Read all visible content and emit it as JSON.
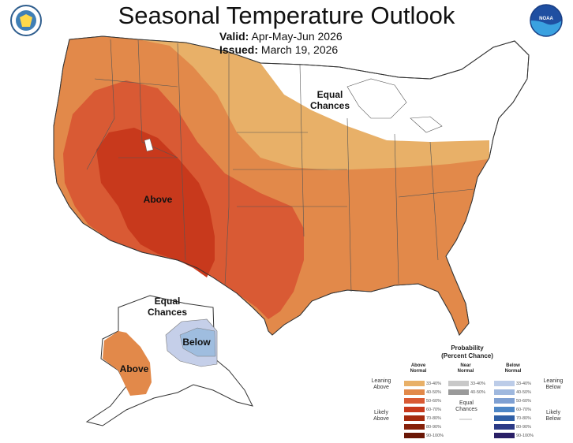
{
  "header": {
    "title": "Seasonal Temperature Outlook",
    "valid_label": "Valid:",
    "valid_value": "Apr-May-Jun 2026",
    "issued_label": "Issued:",
    "issued_value": "March 19, 2026"
  },
  "logos": {
    "left_name": "commerce-seal",
    "right_name": "noaa-logo",
    "right_text": "NOAA"
  },
  "map_labels": {
    "equal_chances_conus": "Equal\nChances",
    "above_conus": "Above",
    "equal_chances_alaska": "Equal\nChances",
    "below_alaska": "Below",
    "above_alaska": "Above"
  },
  "legend": {
    "title": "Probability\n(Percent Chance)",
    "above_header": "Above\nNormal",
    "near_header": "Near\nNormal",
    "below_header": "Below\nNormal",
    "leaning_above": "Leaning\nAbove",
    "likely_above": "Likely\nAbove",
    "leaning_below": "Leaning\nBelow",
    "likely_below": "Likely\nBelow",
    "equal_chances": "Equal\nChances",
    "above_ranges": [
      "33-40%",
      "40-50%",
      "50-60%",
      "60-70%",
      "70-80%",
      "80-90%",
      "90-100%"
    ],
    "near_ranges": [
      "33-40%",
      "40-50%"
    ],
    "below_ranges": [
      "33-40%",
      "40-50%",
      "50-60%",
      "60-70%",
      "70-80%",
      "80-90%",
      "90-100%"
    ],
    "above_colors": [
      "#e8b068",
      "#e2894a",
      "#d95a34",
      "#c8391c",
      "#a52a0e",
      "#86210a",
      "#6a1706"
    ],
    "near_colors": [
      "#c8c8c8",
      "#9a9a9a"
    ],
    "below_colors": [
      "#bccce8",
      "#9fb8de",
      "#7fa0d2",
      "#4d86c6",
      "#2f5fa6",
      "#2b3a86",
      "#2a1f66"
    ]
  },
  "colors": {
    "ec": "#ffffff",
    "above_33_40": "#e8b068",
    "above_40_50": "#e2894a",
    "above_50_60": "#d95a34",
    "above_60_70": "#c8391c",
    "below_33_40": "#c5cfe9",
    "below_40_50": "#9fbddf"
  }
}
